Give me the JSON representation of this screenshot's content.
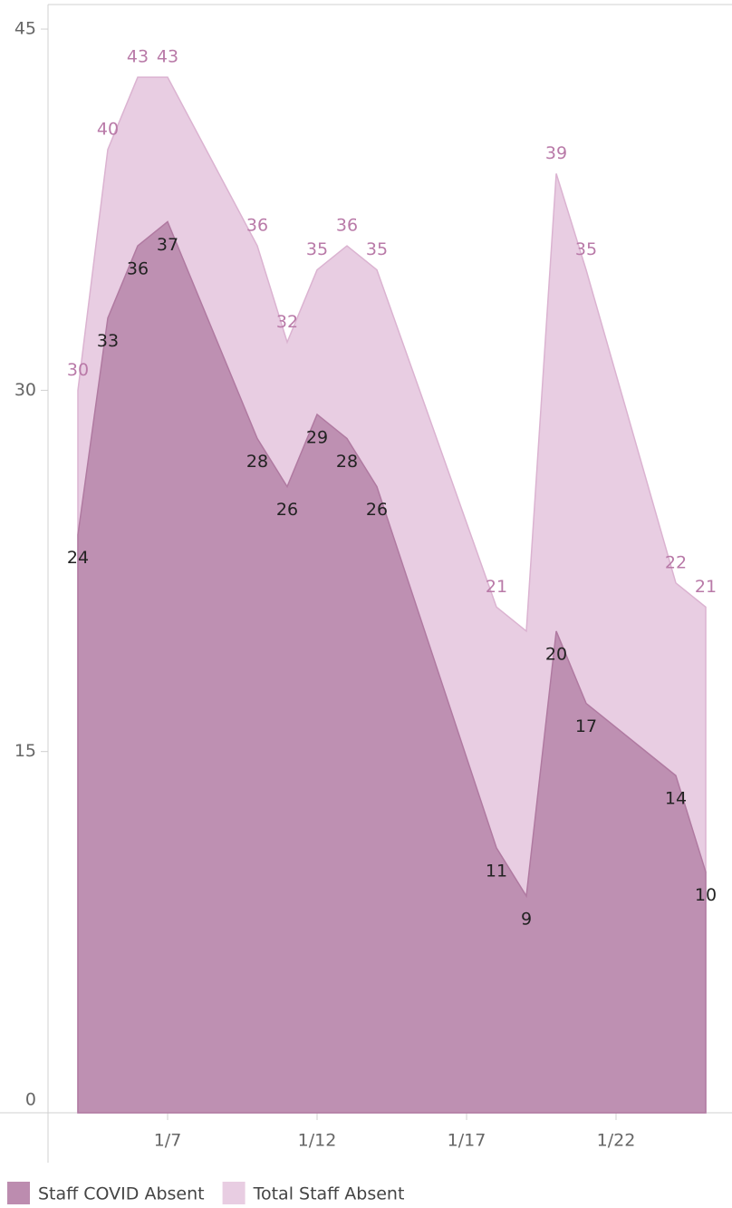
{
  "chart_data": {
    "type": "area",
    "x": [
      4,
      5,
      6,
      7,
      10,
      11,
      12,
      13,
      14,
      18,
      19,
      20,
      21,
      24,
      25
    ],
    "xlim": [
      3,
      25.8
    ],
    "xticks": [
      {
        "value": 7,
        "label": "1/7"
      },
      {
        "value": 12,
        "label": "1/12"
      },
      {
        "value": 17,
        "label": "1/17"
      },
      {
        "value": 22,
        "label": "1/22"
      }
    ],
    "ylim": [
      0,
      46
    ],
    "yticks": [
      0,
      15,
      30,
      45
    ],
    "series": [
      {
        "name": "Total Staff Absent",
        "color": "#e8cde2",
        "values": [
          30,
          40,
          43,
          43,
          36,
          32,
          35,
          36,
          35,
          21,
          20,
          39,
          35,
          22,
          21
        ],
        "value_labels": [
          "30",
          "40",
          "43",
          "43",
          "36",
          "32",
          "35",
          "36",
          "35",
          "21",
          null,
          "39",
          "35",
          "22",
          "21"
        ]
      },
      {
        "name": "Staff COVID Absent",
        "color": "#bc8caf",
        "values": [
          24,
          33,
          36,
          37,
          28,
          26,
          29,
          28,
          26,
          11,
          9,
          20,
          17,
          14,
          10
        ]
      }
    ],
    "legend_order": [
      1,
      0
    ]
  }
}
